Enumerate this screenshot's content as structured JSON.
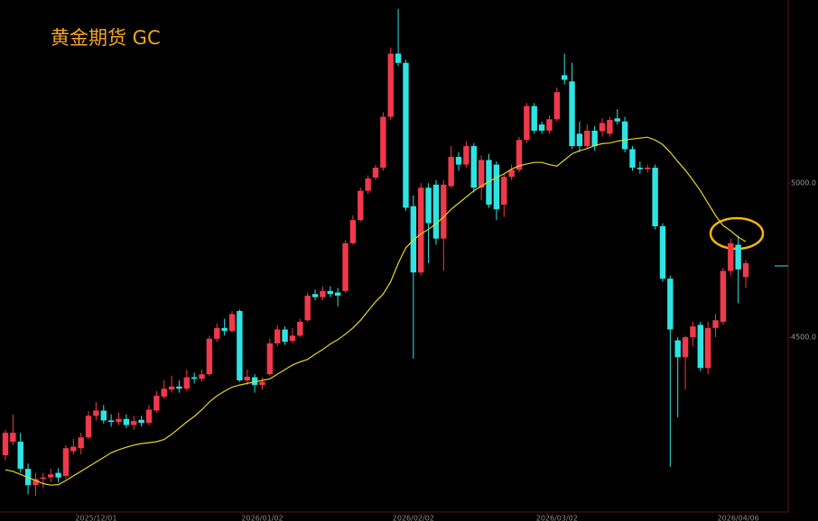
{
  "chart_data": {
    "type": "candlestick",
    "title": "黄金期货 GC",
    "categories": [
      null,
      null,
      null,
      null,
      null,
      null,
      null,
      null,
      null,
      null,
      null,
      null,
      "2025/12/01",
      null,
      null,
      null,
      null,
      null,
      null,
      null,
      null,
      null,
      null,
      null,
      null,
      null,
      null,
      null,
      null,
      null,
      null,
      null,
      null,
      null,
      "2026/01/02",
      null,
      null,
      null,
      null,
      null,
      null,
      null,
      null,
      null,
      null,
      null,
      null,
      null,
      null,
      null,
      null,
      null,
      null,
      null,
      "2026/02/02",
      null,
      null,
      null,
      null,
      null,
      null,
      null,
      null,
      null,
      null,
      null,
      null,
      null,
      null,
      null,
      null,
      null,
      null,
      "2026/03/02",
      null,
      null,
      null,
      null,
      null,
      null,
      null,
      null,
      null,
      null,
      null,
      null,
      null,
      null,
      null,
      null,
      null,
      null,
      null,
      null,
      null,
      null,
      null,
      "2026/04/06",
      null
    ],
    "open": [
      4117,
      4161,
      4161,
      4073,
      4020,
      4040,
      4045,
      4060,
      4050,
      4130,
      4140,
      4175,
      4245,
      4262,
      4230,
      4225,
      4235,
      4215,
      4232,
      4222,
      4262,
      4307,
      4330,
      4340,
      4333,
      4370,
      4365,
      4380,
      4495,
      4530,
      4520,
      4585,
      4360,
      4370,
      4345,
      4380,
      4480,
      4525,
      4488,
      4505,
      4555,
      4640,
      4630,
      4650,
      4645,
      4650,
      4805,
      4880,
      4975,
      5018,
      5050,
      5215,
      5420,
      5390,
      4925,
      4710,
      4985,
      4995,
      4820,
      4990,
      5085,
      5060,
      5120,
      4985,
      5075,
      5060,
      4930,
      5020,
      5043,
      5140,
      5250,
      5190,
      5170,
      5207,
      5350,
      5330,
      5160,
      5120,
      5170,
      5168,
      5160,
      5210,
      5200,
      5110,
      5050,
      5045,
      5050,
      4860,
      4690,
      4490,
      4435,
      4500,
      4540,
      4400,
      4530,
      4550,
      4715,
      4800,
      4695
    ],
    "high": [
      4200,
      4249,
      4190,
      4090,
      4060,
      4060,
      4073,
      4075,
      4150,
      4170,
      4190,
      4260,
      4290,
      4280,
      4250,
      4255,
      4250,
      4245,
      4245,
      4280,
      4325,
      4360,
      4375,
      4360,
      4395,
      4385,
      4395,
      4505,
      4545,
      4560,
      4585,
      4590,
      4395,
      4380,
      4370,
      4495,
      4540,
      4535,
      4530,
      4560,
      4645,
      4655,
      4665,
      4665,
      4660,
      4815,
      4895,
      4985,
      5025,
      5060,
      5230,
      5440,
      5565,
      5400,
      4960,
      5000,
      5000,
      5010,
      5010,
      5120,
      5100,
      5135,
      5130,
      5090,
      5095,
      5070,
      5030,
      5060,
      5150,
      5260,
      5260,
      5200,
      5220,
      5310,
      5420,
      5390,
      5200,
      5190,
      5185,
      5210,
      5215,
      5240,
      5215,
      5120,
      5070,
      5060,
      5060,
      4870,
      4700,
      4500,
      4505,
      4550,
      4550,
      4550,
      4575,
      4725,
      4820,
      4830,
      4750
    ],
    "low": [
      4100,
      4150,
      4060,
      3990,
      3985,
      4010,
      4030,
      4030,
      4040,
      4120,
      4120,
      4170,
      4230,
      4220,
      4210,
      4215,
      4205,
      4200,
      4210,
      4215,
      4255,
      4300,
      4320,
      4320,
      4325,
      4350,
      4355,
      4375,
      4485,
      4505,
      4515,
      4355,
      4345,
      4320,
      4330,
      4375,
      4470,
      4475,
      4480,
      4500,
      4550,
      4620,
      4620,
      4630,
      4600,
      4645,
      4800,
      4875,
      4965,
      5010,
      5040,
      5205,
      5380,
      4910,
      4430,
      4700,
      4740,
      4800,
      4715,
      4985,
      5040,
      5050,
      4970,
      4945,
      4920,
      4880,
      4890,
      5010,
      5035,
      5130,
      5160,
      5160,
      5160,
      5200,
      5320,
      5110,
      5100,
      5110,
      5105,
      5150,
      5150,
      5190,
      5100,
      5040,
      5030,
      5035,
      4850,
      4680,
      4080,
      4240,
      4330,
      4470,
      4390,
      4380,
      4500,
      4540,
      4700,
      4610,
      4660
    ],
    "close": [
      4190,
      4190,
      4073,
      4020,
      4040,
      4045,
      4055,
      4045,
      4140,
      4145,
      4175,
      4245,
      4262,
      4230,
      4225,
      4235,
      4215,
      4228,
      4222,
      4265,
      4310,
      4333,
      4340,
      4333,
      4370,
      4365,
      4380,
      4495,
      4530,
      4520,
      4575,
      4360,
      4372,
      4345,
      4355,
      4480,
      4525,
      4485,
      4505,
      4550,
      4635,
      4630,
      4650,
      4640,
      4635,
      4805,
      4880,
      4975,
      5015,
      5050,
      5215,
      5420,
      5390,
      4920,
      4710,
      4985,
      4870,
      4820,
      4995,
      5085,
      5060,
      5120,
      4985,
      5075,
      4930,
      4915,
      5020,
      5043,
      5140,
      5250,
      5170,
      5170,
      5207,
      5295,
      5335,
      5120,
      5120,
      5170,
      5120,
      5195,
      5205,
      5200,
      5110,
      5050,
      5045,
      5050,
      4860,
      4690,
      4525,
      4435,
      4500,
      4535,
      4400,
      4530,
      4555,
      4715,
      4805,
      4720,
      4740
    ],
    "ma": {
      "color": "#e8d420",
      "values": [
        4070,
        4065,
        4055,
        4045,
        4035,
        4025,
        4020,
        4022,
        4035,
        4050,
        4065,
        4080,
        4095,
        4110,
        4125,
        4135,
        4143,
        4150,
        4155,
        4158,
        4161,
        4168,
        4185,
        4205,
        4225,
        4243,
        4265,
        4290,
        4310,
        4325,
        4338,
        4345,
        4350,
        4355,
        4360,
        4365,
        4380,
        4395,
        4410,
        4420,
        4428,
        4445,
        4460,
        4478,
        4492,
        4510,
        4530,
        4555,
        4585,
        4615,
        4640,
        4680,
        4740,
        4790,
        4815,
        4835,
        4850,
        4868,
        4890,
        4915,
        4935,
        4955,
        4975,
        4990,
        5005,
        5018,
        5030,
        5045,
        5056,
        5062,
        5067,
        5067,
        5060,
        5055,
        5075,
        5095,
        5105,
        5112,
        5122,
        5128,
        5130,
        5136,
        5140,
        5143,
        5146,
        5149,
        5140,
        5125,
        5100,
        5070,
        5042,
        5010,
        4975,
        4935,
        4895,
        4862,
        4845,
        4825,
        4810
      ]
    },
    "up_color": "#f0394a",
    "down_color": "#2fe3e3",
    "ylim": [
      3933,
      5594
    ],
    "yticks": [
      {
        "value": 4500,
        "label": "4500.0"
      },
      {
        "value": 5000,
        "label": "5000.0"
      }
    ]
  }
}
